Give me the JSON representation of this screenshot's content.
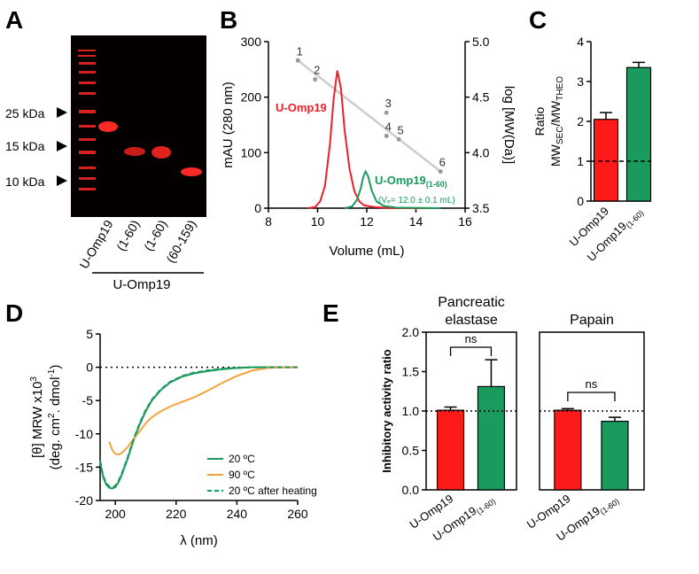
{
  "panels": {
    "A": {
      "letter": "A",
      "markers": [
        "25 kDa",
        "15 kDa",
        "10 kDa"
      ],
      "lane_labels": [
        "U-Omp19",
        "(1-60)",
        "(1-60)",
        "(60-159)"
      ],
      "group_label": "U-Omp19"
    },
    "B": {
      "letter": "B"
    },
    "C": {
      "letter": "C"
    },
    "D": {
      "letter": "D"
    },
    "E": {
      "letter": "E"
    }
  },
  "chart_data": [
    {
      "id": "B",
      "type": "line",
      "xlabel": "Volume (mL)",
      "ylabel": "mAU (280 nm)",
      "ylabel_right": "log [MW(Da)]",
      "xlim": [
        8,
        16
      ],
      "ylim": [
        0,
        300
      ],
      "ylim_right": [
        3.5,
        5.0
      ],
      "xticks": [
        "8",
        "10",
        "12",
        "14",
        "16"
      ],
      "yticks": [
        "0",
        "100",
        "200",
        "300"
      ],
      "yticks_right": [
        "3.5",
        "4.0",
        "4.5",
        "5.0"
      ],
      "series": [
        {
          "name": "U-Omp19",
          "color": "#e8212b",
          "x": [
            9.6,
            9.9,
            10.1,
            10.3,
            10.5,
            10.65,
            10.8,
            10.95,
            11.1,
            11.3,
            11.5,
            11.7,
            11.9,
            12.3,
            13.0,
            15.0
          ],
          "y": [
            0,
            2,
            12,
            40,
            115,
            195,
            248,
            215,
            140,
            70,
            30,
            12,
            5,
            2,
            0,
            0
          ]
        },
        {
          "name": "U-Omp19",
          "name_sub": "(1-60)",
          "color": "#1a9a5c",
          "x": [
            11.1,
            11.4,
            11.6,
            11.75,
            11.85,
            11.95,
            12.05,
            12.2,
            12.4,
            12.7,
            13.2,
            15.0
          ],
          "y": [
            0,
            3,
            15,
            35,
            55,
            66,
            58,
            32,
            12,
            4,
            1,
            0
          ]
        }
      ],
      "standards": {
        "color": "#9a9a9a",
        "labels": [
          "1",
          "2",
          "3",
          "4",
          "5",
          "6"
        ],
        "x": [
          9.2,
          9.9,
          12.8,
          12.8,
          13.3,
          15.0
        ],
        "log_mw": [
          4.83,
          4.66,
          4.36,
          4.15,
          4.12,
          3.83
        ]
      },
      "fit": {
        "x": [
          9.2,
          15.0
        ],
        "log_mw": [
          4.83,
          3.83
        ]
      },
      "annotation": "(Vₑ= 12.0 ± 0.1 mL)"
    },
    {
      "id": "C",
      "type": "bar",
      "ylabel_main": "Ratio",
      "ylabel_line1": "MW",
      "ylabel_sub1": "SEC",
      "ylabel_mid": "/MW",
      "ylabel_sub2": "THEO",
      "ylim": [
        0,
        4
      ],
      "yticks": [
        "0",
        "1",
        "2",
        "3",
        "4"
      ],
      "categories": [
        "U-Omp19",
        "U-Omp19"
      ],
      "category_subs": [
        "",
        "(1-60)"
      ],
      "values": [
        2.05,
        3.35
      ],
      "errors": [
        0.17,
        0.13
      ],
      "colors": [
        "#ff1a1a",
        "#1a9a5c"
      ],
      "reference_line": 1
    },
    {
      "id": "D",
      "type": "line",
      "xlabel": "λ (nm)",
      "ylabel_line1": "[θ] MRW  x10",
      "ylabel_line1_sup": "3",
      "ylabel_line2": "(deg. cm",
      "ylabel_line2_sup": "2",
      "ylabel_line2_mid": ". dmol",
      "ylabel_line2_sup2": "-1",
      "ylabel_line2_end": ")",
      "xlim": [
        195,
        260
      ],
      "ylim": [
        -20,
        5
      ],
      "xticks": [
        "200",
        "220",
        "240",
        "260"
      ],
      "yticks": [
        "5",
        "0",
        "-5",
        "-10",
        "-15",
        "-20"
      ],
      "series": [
        {
          "name": "20 ºC",
          "color": "#1a9a5c",
          "dash": false,
          "x": [
            195,
            196,
            197,
            198,
            199,
            200,
            201,
            202,
            204,
            206,
            208,
            210,
            212,
            215,
            218,
            222,
            226,
            230,
            235,
            240,
            245,
            250,
            255,
            260
          ],
          "y": [
            -14.2,
            -16.5,
            -17.6,
            -18.1,
            -18.2,
            -18.0,
            -17.3,
            -16.3,
            -13.8,
            -11.0,
            -8.6,
            -6.6,
            -5.0,
            -3.4,
            -2.3,
            -1.4,
            -0.9,
            -0.6,
            -0.3,
            -0.1,
            0,
            0,
            0,
            0
          ]
        },
        {
          "name": "90 ºC",
          "color": "#f6a23c",
          "dash": false,
          "x": [
            198,
            199,
            200,
            201,
            202,
            204,
            206,
            208,
            210,
            212,
            215,
            218,
            222,
            226,
            230,
            235,
            240,
            245,
            250,
            255,
            260
          ],
          "y": [
            -11.2,
            -12.4,
            -13.0,
            -13.1,
            -12.9,
            -12.0,
            -10.8,
            -9.6,
            -8.4,
            -7.5,
            -6.6,
            -5.9,
            -5.2,
            -4.5,
            -3.6,
            -2.4,
            -1.3,
            -0.5,
            -0.1,
            0,
            0
          ]
        },
        {
          "name": "20 ºC after heating",
          "color": "#1a9a5c",
          "dash": true,
          "x": [
            195,
            196,
            197,
            198,
            199,
            200,
            201,
            202,
            204,
            206,
            208,
            210,
            212,
            215,
            218,
            222,
            226,
            230,
            235,
            240,
            245,
            250,
            255,
            260
          ],
          "y": [
            -14.0,
            -16.3,
            -17.4,
            -17.9,
            -18.0,
            -17.8,
            -17.1,
            -16.1,
            -13.6,
            -10.8,
            -8.4,
            -6.4,
            -4.9,
            -3.3,
            -2.2,
            -1.3,
            -0.8,
            -0.5,
            -0.2,
            -0.1,
            0,
            0,
            0,
            0
          ]
        }
      ]
    },
    {
      "id": "E",
      "type": "bar",
      "ylabel": "Inhibitory activity ratio",
      "ylim": [
        0,
        2.0
      ],
      "yticks": [
        "0.0",
        "0.5",
        "1.0",
        "1.5",
        "2.0"
      ],
      "reference_line": 1,
      "facets": [
        {
          "title_line1": "Pancreatic",
          "title_line2": "elastase",
          "categories": [
            "U-Omp19",
            "U-Omp19"
          ],
          "category_subs": [
            "",
            "(1-60)"
          ],
          "values": [
            1.01,
            1.31
          ],
          "errors": [
            0.04,
            0.34
          ],
          "colors": [
            "#ff1a1a",
            "#1a9a5c"
          ],
          "significance": "ns"
        },
        {
          "title_line1": "Papain",
          "title_line2": "",
          "categories": [
            "U-Omp19",
            "U-Omp19"
          ],
          "category_subs": [
            "",
            "(1-60)"
          ],
          "values": [
            1.01,
            0.87
          ],
          "errors": [
            0.02,
            0.05
          ],
          "colors": [
            "#ff1a1a",
            "#1a9a5c"
          ],
          "significance": "ns"
        }
      ]
    }
  ]
}
